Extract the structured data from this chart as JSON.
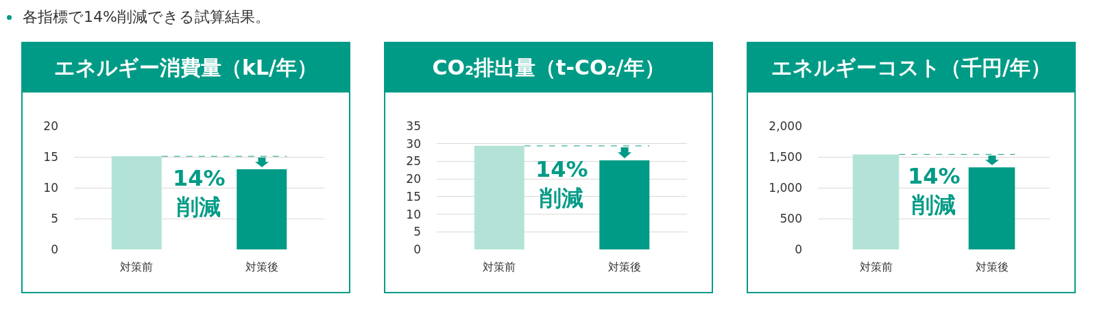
{
  "chart_data": [
    {
      "type": "other",
      "title": "各指標で14%削減できる試算結果。"
    },
    {
      "type": "bar",
      "title": "エネルギー消費量（kL/年）",
      "categories": [
        "対策前",
        "対策後"
      ],
      "values": [
        15.1,
        13.0
      ],
      "colors": [
        "#b3e3d7",
        "#009b86"
      ],
      "ylim": [
        0,
        20
      ],
      "yticks": [
        0,
        5,
        10,
        15,
        20
      ],
      "grid": "y",
      "ref_lines": [
        {
          "axis": "y",
          "value": 15.1,
          "color": "#3fae9c",
          "line_style": "dashed"
        }
      ],
      "annotations": [
        "14%\n削減"
      ]
    },
    {
      "type": "bar",
      "title": "CO₂排出量（t-CO₂/年）",
      "categories": [
        "対策前",
        "対策後"
      ],
      "values": [
        29.4,
        25.3
      ],
      "colors": [
        "#b3e3d7",
        "#009b86"
      ],
      "ylim": [
        0,
        35
      ],
      "yticks": [
        0,
        5,
        10,
        15,
        20,
        25,
        30,
        35
      ],
      "grid": "y",
      "ref_lines": [
        {
          "axis": "y",
          "value": 29.4,
          "color": "#3fae9c",
          "line_style": "dashed"
        }
      ],
      "annotations": [
        "14%\n削減"
      ]
    },
    {
      "type": "bar",
      "title": "エネルギーコスト（千円/年）",
      "categories": [
        "対策前",
        "対策後"
      ],
      "values": [
        1540,
        1330
      ],
      "colors": [
        "#b3e3d7",
        "#009b86"
      ],
      "ylim": [
        0,
        2000
      ],
      "yticks": [
        0,
        500,
        {
          "value": 1000,
          "label": "1,000"
        },
        {
          "value": 1500,
          "label": "1,500"
        },
        {
          "value": 2000,
          "label": "2,000"
        }
      ],
      "grid": "y",
      "ref_lines": [
        {
          "axis": "y",
          "value": 1540,
          "color": "#3fae9c",
          "line_style": "dashed"
        }
      ],
      "annotations": [
        "14%\n削減"
      ]
    }
  ]
}
